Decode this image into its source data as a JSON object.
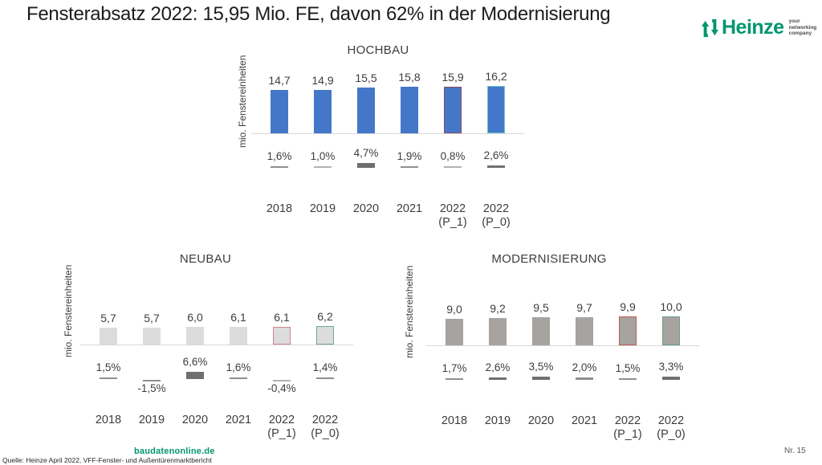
{
  "slide": {
    "title": "Fensterabsatz 2022: 15,95 Mio. FE, davon 62% in der Modernisierung",
    "page_number": "Nr. 15"
  },
  "logo": {
    "brand": "Heinze",
    "brand_color": "#00966f",
    "tagline_lines": [
      "your",
      "networking",
      "company"
    ]
  },
  "footer": {
    "website": "baudatenonline.de",
    "website_color": "#00966f",
    "source": "Quelle: Heinze April 2022, VFF-Fenster- und Außentürenmarktbericht"
  },
  "chart_data": [
    {
      "type": "bar",
      "title": "HOCHBAU",
      "ylabel": "mio. Fenstereinheiten",
      "categories": [
        "2018",
        "2019",
        "2020",
        "2021",
        "2022 (P_1)",
        "2022 (P_0)"
      ],
      "values": [
        14.7,
        14.9,
        15.5,
        15.8,
        15.9,
        16.2
      ],
      "value_labels": [
        "14,7",
        "14,9",
        "15,5",
        "15,8",
        "15,9",
        "16,2"
      ],
      "growth_pct": [
        1.6,
        1.0,
        4.7,
        1.9,
        0.8,
        2.6
      ],
      "growth_labels": [
        "1,6%",
        "1,0%",
        "4,7%",
        "1,9%",
        "0,8%",
        "2,6%"
      ],
      "bar_fill": "#4577c9",
      "bar_borders": [
        null,
        null,
        null,
        null,
        "#8a4a66",
        "#6cc2c9"
      ],
      "axis_color": "#d8d8d8",
      "ylim": [
        0,
        17
      ],
      "grid": false,
      "legend": "none"
    },
    {
      "type": "bar",
      "title": "NEUBAU",
      "ylabel": "mio. Fenstereinheiten",
      "categories": [
        "2018",
        "2019",
        "2020",
        "2021",
        "2022 (P_1)",
        "2022 (P_0)"
      ],
      "values": [
        5.7,
        5.7,
        6.0,
        6.1,
        6.1,
        6.2
      ],
      "value_labels": [
        "5,7",
        "5,7",
        "6,0",
        "6,1",
        "6,1",
        "6,2"
      ],
      "growth_pct": [
        1.5,
        -1.5,
        6.6,
        1.6,
        -0.4,
        1.4
      ],
      "growth_labels": [
        "1,5%",
        "-1,5%",
        "6,6%",
        "1,6%",
        "-0,4%",
        "1,4%"
      ],
      "bar_fill": "#dcdcdc",
      "bar_borders": [
        null,
        null,
        null,
        null,
        "#d0848e",
        "#74a893"
      ],
      "axis_color": "#d8d8d8",
      "ylim": [
        0,
        7
      ],
      "grid": false,
      "legend": "none"
    },
    {
      "type": "bar",
      "title": "MODERNISIERUNG",
      "ylabel": "mio. Fenstereinheiten",
      "categories": [
        "2018",
        "2019",
        "2020",
        "2021",
        "2022 (P_1)",
        "2022 (P_0)"
      ],
      "values": [
        9.0,
        9.2,
        9.5,
        9.7,
        9.9,
        10.0
      ],
      "value_labels": [
        "9,0",
        "9,2",
        "9,5",
        "9,7",
        "9,9",
        "10,0"
      ],
      "growth_pct": [
        1.7,
        2.6,
        3.5,
        2.0,
        1.5,
        3.3
      ],
      "growth_labels": [
        "1,7%",
        "2,6%",
        "3,5%",
        "2,0%",
        "1,5%",
        "3,3%"
      ],
      "bar_fill": "#a6a3a0",
      "bar_borders": [
        null,
        null,
        null,
        null,
        "#bf5a50",
        "#6f9d88"
      ],
      "axis_color": "#d8d8d8",
      "ylim": [
        0,
        11
      ],
      "grid": false,
      "legend": "none"
    }
  ]
}
